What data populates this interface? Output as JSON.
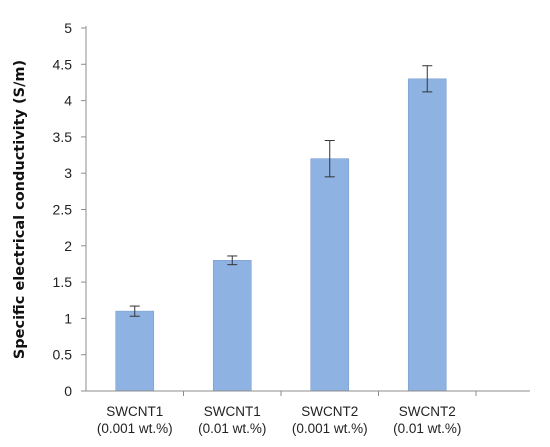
{
  "chart_data": {
    "type": "bar",
    "title": "",
    "xlabel": "",
    "ylabel": "Specific electrical conductivity (S/m)",
    "ylim": [
      0,
      5
    ],
    "yticks": [
      "0",
      "0.5",
      "1",
      "1.5",
      "2",
      "2.5",
      "3",
      "3.5",
      "4",
      "4.5",
      "5"
    ],
    "grid": false,
    "legend": "none",
    "categories": [
      [
        "SWCNT1",
        "(0.001 wt.%)"
      ],
      [
        "SWCNT1",
        "(0.01 wt.%)"
      ],
      [
        "SWCNT2",
        "(0.001 wt.%)"
      ],
      [
        "SWCNT2",
        "(0.01 wt.%)"
      ]
    ],
    "values": [
      1.1,
      1.8,
      3.2,
      4.3
    ],
    "errors": [
      0.07,
      0.06,
      0.25,
      0.18
    ],
    "bar_color": "#8eb3e3",
    "bar_edge_color": "#7a9fd0"
  }
}
